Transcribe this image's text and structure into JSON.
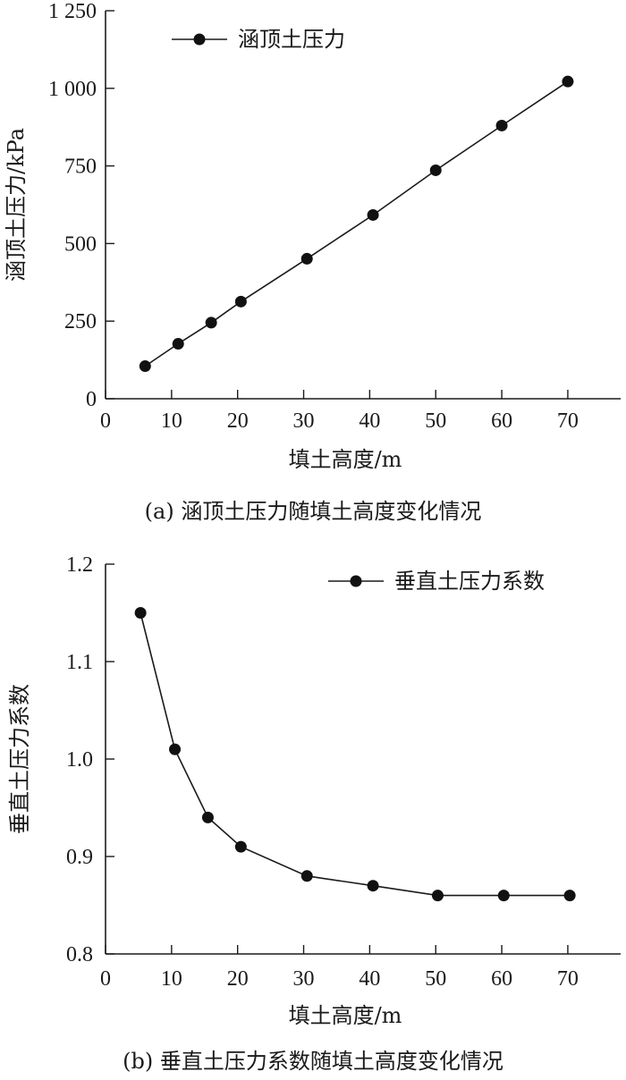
{
  "chart_data": [
    {
      "type": "line",
      "title": "",
      "caption": "(a) 涵顶土压力随填土高度变化情况",
      "xlabel": "填土高度/m",
      "ylabel": "涵顶土压力/kPa",
      "xlim": [
        0,
        78
      ],
      "ylim": [
        0,
        1250
      ],
      "xticks": [
        0,
        10,
        20,
        30,
        40,
        50,
        60,
        70
      ],
      "xtick_labels": [
        "0",
        "10",
        "20",
        "30",
        "40",
        "50",
        "60",
        "70"
      ],
      "yticks": [
        0,
        250,
        500,
        750,
        1000,
        1250
      ],
      "ytick_labels": [
        "0",
        "250",
        "500",
        "750",
        "1 000",
        "1 250"
      ],
      "grid": false,
      "legend_position": "top-left",
      "series": [
        {
          "name": "涵顶土压力",
          "marker": "filled-circle",
          "color": "#111111",
          "x": [
            6,
            11,
            16,
            20.5,
            30.5,
            40.5,
            50,
            60,
            70
          ],
          "y": [
            105,
            177,
            245,
            313,
            451,
            592,
            736,
            880,
            1022
          ]
        }
      ]
    },
    {
      "type": "line",
      "title": "",
      "caption": "(b) 垂直土压力系数随填土高度变化情况",
      "xlabel": "填土高度/m",
      "ylabel": "垂直土压力系数",
      "xlim": [
        0,
        78
      ],
      "ylim": [
        0.8,
        1.2
      ],
      "xticks": [
        0,
        10,
        20,
        30,
        40,
        50,
        60,
        70
      ],
      "xtick_labels": [
        "0",
        "10",
        "20",
        "30",
        "40",
        "50",
        "60",
        "70"
      ],
      "yticks": [
        0.8,
        0.9,
        1.0,
        1.1,
        1.2
      ],
      "ytick_labels": [
        "0.8",
        "0.9",
        "1.0",
        "1.1",
        "1.2"
      ],
      "grid": false,
      "legend_position": "top-right",
      "series": [
        {
          "name": "垂直土压力系数",
          "marker": "filled-circle",
          "color": "#111111",
          "x": [
            5.3,
            10.5,
            15.5,
            20.5,
            30.5,
            40.5,
            50.3,
            60.3,
            70.3
          ],
          "y": [
            1.15,
            1.01,
            0.94,
            0.91,
            0.88,
            0.87,
            0.86,
            0.86,
            0.86
          ]
        }
      ]
    }
  ]
}
